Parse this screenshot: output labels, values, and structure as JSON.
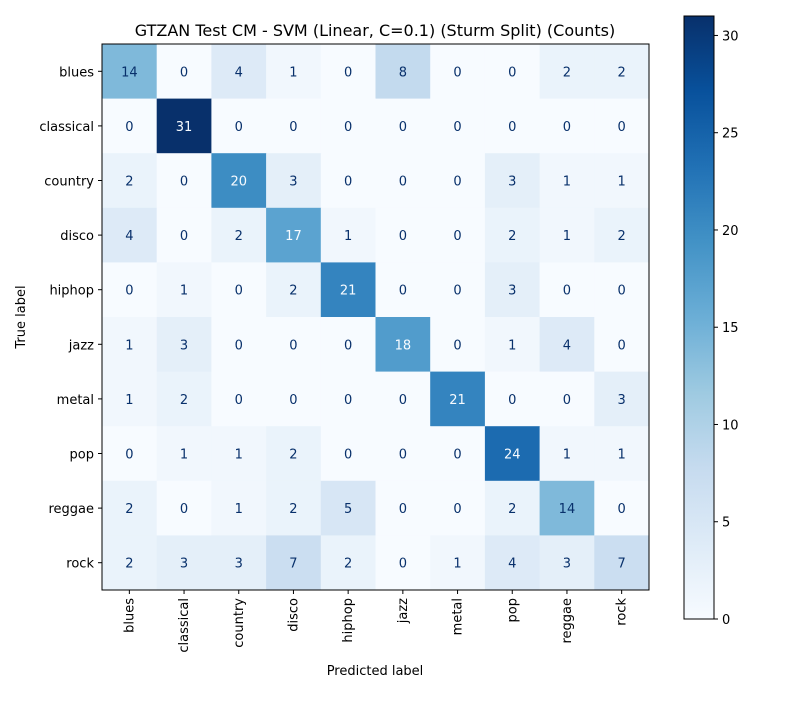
{
  "chart_data": {
    "type": "heatmap",
    "title": "GTZAN Test CM - SVM (Linear, C=0.1) (Sturm Split) (Counts)",
    "xlabel": "Predicted label",
    "ylabel": "True label",
    "x_categories": [
      "blues",
      "classical",
      "country",
      "disco",
      "hiphop",
      "jazz",
      "metal",
      "pop",
      "reggae",
      "rock"
    ],
    "y_categories": [
      "blues",
      "classical",
      "country",
      "disco",
      "hiphop",
      "jazz",
      "metal",
      "pop",
      "reggae",
      "rock"
    ],
    "values": [
      [
        14,
        0,
        4,
        1,
        0,
        8,
        0,
        0,
        2,
        2
      ],
      [
        0,
        31,
        0,
        0,
        0,
        0,
        0,
        0,
        0,
        0
      ],
      [
        2,
        0,
        20,
        3,
        0,
        0,
        0,
        3,
        1,
        1
      ],
      [
        4,
        0,
        2,
        17,
        1,
        0,
        0,
        2,
        1,
        2
      ],
      [
        0,
        1,
        0,
        2,
        21,
        0,
        0,
        3,
        0,
        0
      ],
      [
        1,
        3,
        0,
        0,
        0,
        18,
        0,
        1,
        4,
        0
      ],
      [
        1,
        2,
        0,
        0,
        0,
        0,
        21,
        0,
        0,
        3
      ],
      [
        0,
        1,
        1,
        2,
        0,
        0,
        0,
        24,
        1,
        1
      ],
      [
        2,
        0,
        1,
        2,
        5,
        0,
        0,
        2,
        14,
        0
      ],
      [
        2,
        3,
        3,
        7,
        2,
        0,
        1,
        4,
        3,
        7
      ]
    ],
    "colorbar": {
      "colormap": "Blues",
      "range": [
        0,
        31
      ],
      "ticks": [
        0,
        5,
        10,
        15,
        20,
        25,
        30
      ]
    },
    "grid": false
  }
}
